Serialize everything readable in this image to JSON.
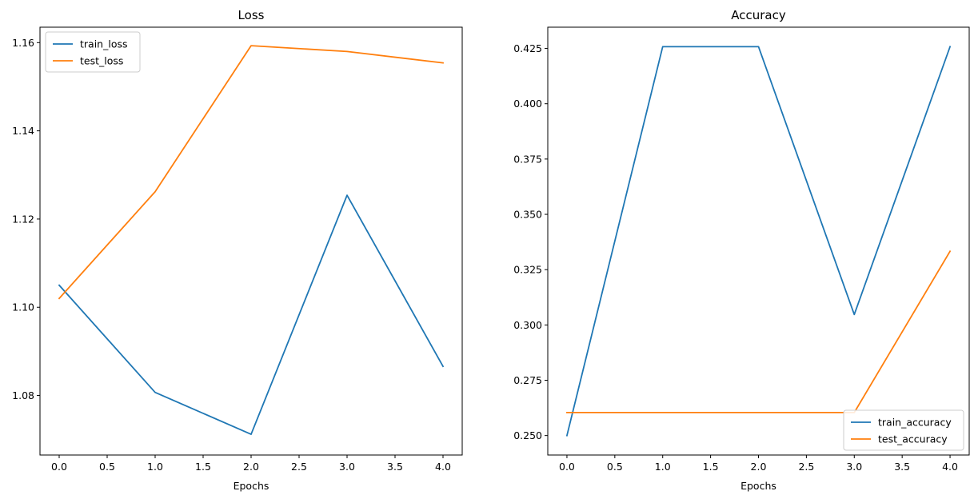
{
  "chart_data": [
    {
      "type": "line",
      "title": "Loss",
      "xlabel": "Epochs",
      "ylabel": "",
      "x": [
        0,
        1,
        2,
        3,
        4
      ],
      "xlim": [
        -0.2,
        4.2
      ],
      "ylim": [
        1.0665,
        1.1635
      ],
      "xticks": [
        "0.0",
        "0.5",
        "1.0",
        "1.5",
        "2.0",
        "2.5",
        "3.0",
        "3.5",
        "4.0"
      ],
      "yticks": [
        "1.08",
        "1.10",
        "1.12",
        "1.14",
        "1.16"
      ],
      "legend_position": "upper-left",
      "grid": false,
      "series": [
        {
          "name": "train_loss",
          "color": "#1f77b4",
          "values": [
            1.105,
            1.0807,
            1.0712,
            1.1254,
            1.0866
          ]
        },
        {
          "name": "test_loss",
          "color": "#ff7f0e",
          "values": [
            1.102,
            1.1262,
            1.1593,
            1.158,
            1.1554
          ]
        }
      ]
    },
    {
      "type": "line",
      "title": "Accuracy",
      "xlabel": "Epochs",
      "ylabel": "",
      "x": [
        0,
        1,
        2,
        3,
        4
      ],
      "xlim": [
        -0.2,
        4.2
      ],
      "ylim": [
        0.2412,
        0.4346
      ],
      "xticks": [
        "0.0",
        "0.5",
        "1.0",
        "1.5",
        "2.0",
        "2.5",
        "3.0",
        "3.5",
        "4.0"
      ],
      "yticks": [
        "0.250",
        "0.275",
        "0.300",
        "0.325",
        "0.350",
        "0.375",
        "0.400",
        "0.425"
      ],
      "legend_position": "lower-right",
      "grid": false,
      "series": [
        {
          "name": "train_accuracy",
          "color": "#1f77b4",
          "values": [
            0.25,
            0.4258,
            0.4258,
            0.3047,
            0.4258
          ]
        },
        {
          "name": "test_accuracy",
          "color": "#ff7f0e",
          "values": [
            0.2604,
            0.2604,
            0.2604,
            0.2604,
            0.3333
          ]
        }
      ]
    }
  ]
}
